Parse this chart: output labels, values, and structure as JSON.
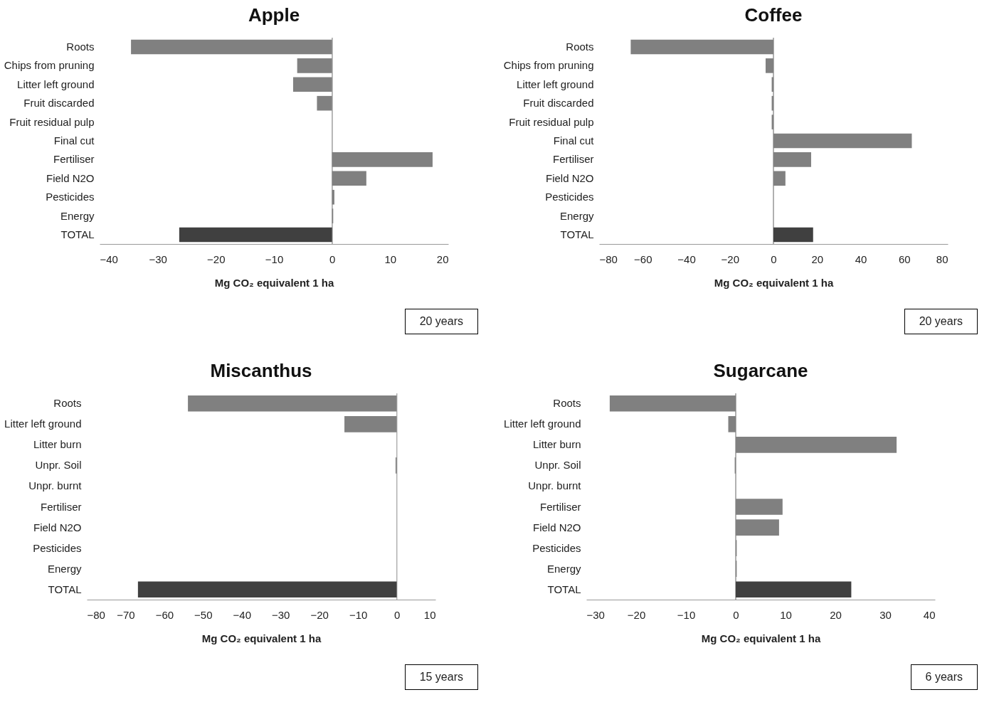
{
  "chart_data": [
    {
      "type": "bar",
      "orientation": "horizontal",
      "title": "Apple",
      "xlabel": "Mg CO₂ equivalent 1 ha",
      "annotations": [
        "20 years"
      ],
      "categories": [
        "Roots",
        "Chips from pruning",
        "Litter left ground",
        "Fruit discarded",
        "Fruit residual pulp",
        "Final cut",
        "Fertiliser",
        "Field N2O",
        "Pesticides",
        "Energy",
        "TOTAL"
      ],
      "values": [
        -34.6,
        -6.0,
        -6.7,
        -2.6,
        0,
        0,
        17.3,
        5.9,
        0.4,
        0.2,
        -26.3
      ],
      "colors": [
        "#808080",
        "#808080",
        "#808080",
        "#808080",
        "#808080",
        "#808080",
        "#808080",
        "#808080",
        "#808080",
        "#808080",
        "#404040"
      ],
      "xlim": [
        -40,
        20
      ],
      "xticks": [
        -40,
        -30,
        -20,
        -10,
        0,
        10,
        20
      ]
    },
    {
      "type": "bar",
      "orientation": "horizontal",
      "title": "Coffee",
      "xlabel": "Mg CO₂ equivalent 1 ha",
      "annotations": [
        "20 years"
      ],
      "categories": [
        "Roots",
        "Chips from pruning",
        "Litter left ground",
        "Fruit discarded",
        "Fruit residual pulp",
        "Final cut",
        "Fertiliser",
        "Field N2O",
        "Pesticides",
        "Energy",
        "TOTAL"
      ],
      "values": [
        -65.5,
        -3.6,
        -0.8,
        -0.8,
        -0.8,
        63.5,
        17.3,
        5.5,
        0,
        0,
        18.2
      ],
      "colors": [
        "#808080",
        "#808080",
        "#808080",
        "#808080",
        "#808080",
        "#808080",
        "#808080",
        "#808080",
        "#808080",
        "#808080",
        "#404040"
      ],
      "xlim": [
        -80,
        80
      ],
      "xticks": [
        -80,
        -60,
        -40,
        -20,
        0,
        20,
        40,
        60,
        80
      ]
    },
    {
      "type": "bar",
      "orientation": "horizontal",
      "title": "Miscanthus",
      "xlabel": "Mg CO₂ equivalent 1 ha",
      "annotations": [
        "15 years"
      ],
      "categories": [
        "Roots",
        "Litter left ground",
        "Litter burn",
        "Unpr. Soil",
        "Unpr. burnt",
        "Fertiliser",
        "Field N2O",
        "Pesticides",
        "Energy",
        "TOTAL"
      ],
      "values": [
        -53.9,
        -13.5,
        0,
        -0.3,
        0,
        0,
        0,
        0,
        0,
        -66.8
      ],
      "colors": [
        "#808080",
        "#808080",
        "#808080",
        "#808080",
        "#808080",
        "#808080",
        "#808080",
        "#808080",
        "#808080",
        "#404040"
      ],
      "xlim": [
        -80,
        10
      ],
      "xticks": [
        -80,
        -70,
        -60,
        -50,
        -40,
        -30,
        -20,
        -10,
        0,
        10
      ]
    },
    {
      "type": "bar",
      "orientation": "horizontal",
      "title": "Sugarcane",
      "xlabel": "Mg CO₂ equivalent 1 ha",
      "annotations": [
        "6 years"
      ],
      "categories": [
        "Roots",
        "Litter left ground",
        "Litter burn",
        "Unpr. Soil",
        "Unpr. burnt",
        "Fertiliser",
        "Field N2O",
        "Pesticides",
        "Energy",
        "TOTAL"
      ],
      "values": [
        -25.3,
        -1.5,
        32.3,
        -0.2,
        0,
        9.4,
        8.7,
        0.2,
        0.2,
        23.2
      ],
      "colors": [
        "#808080",
        "#808080",
        "#808080",
        "#808080",
        "#808080",
        "#808080",
        "#808080",
        "#808080",
        "#808080",
        "#404040"
      ],
      "xlim": [
        -30,
        40
      ],
      "xticks": [
        -30,
        -20,
        -10,
        0,
        10,
        20,
        30,
        40
      ]
    }
  ]
}
